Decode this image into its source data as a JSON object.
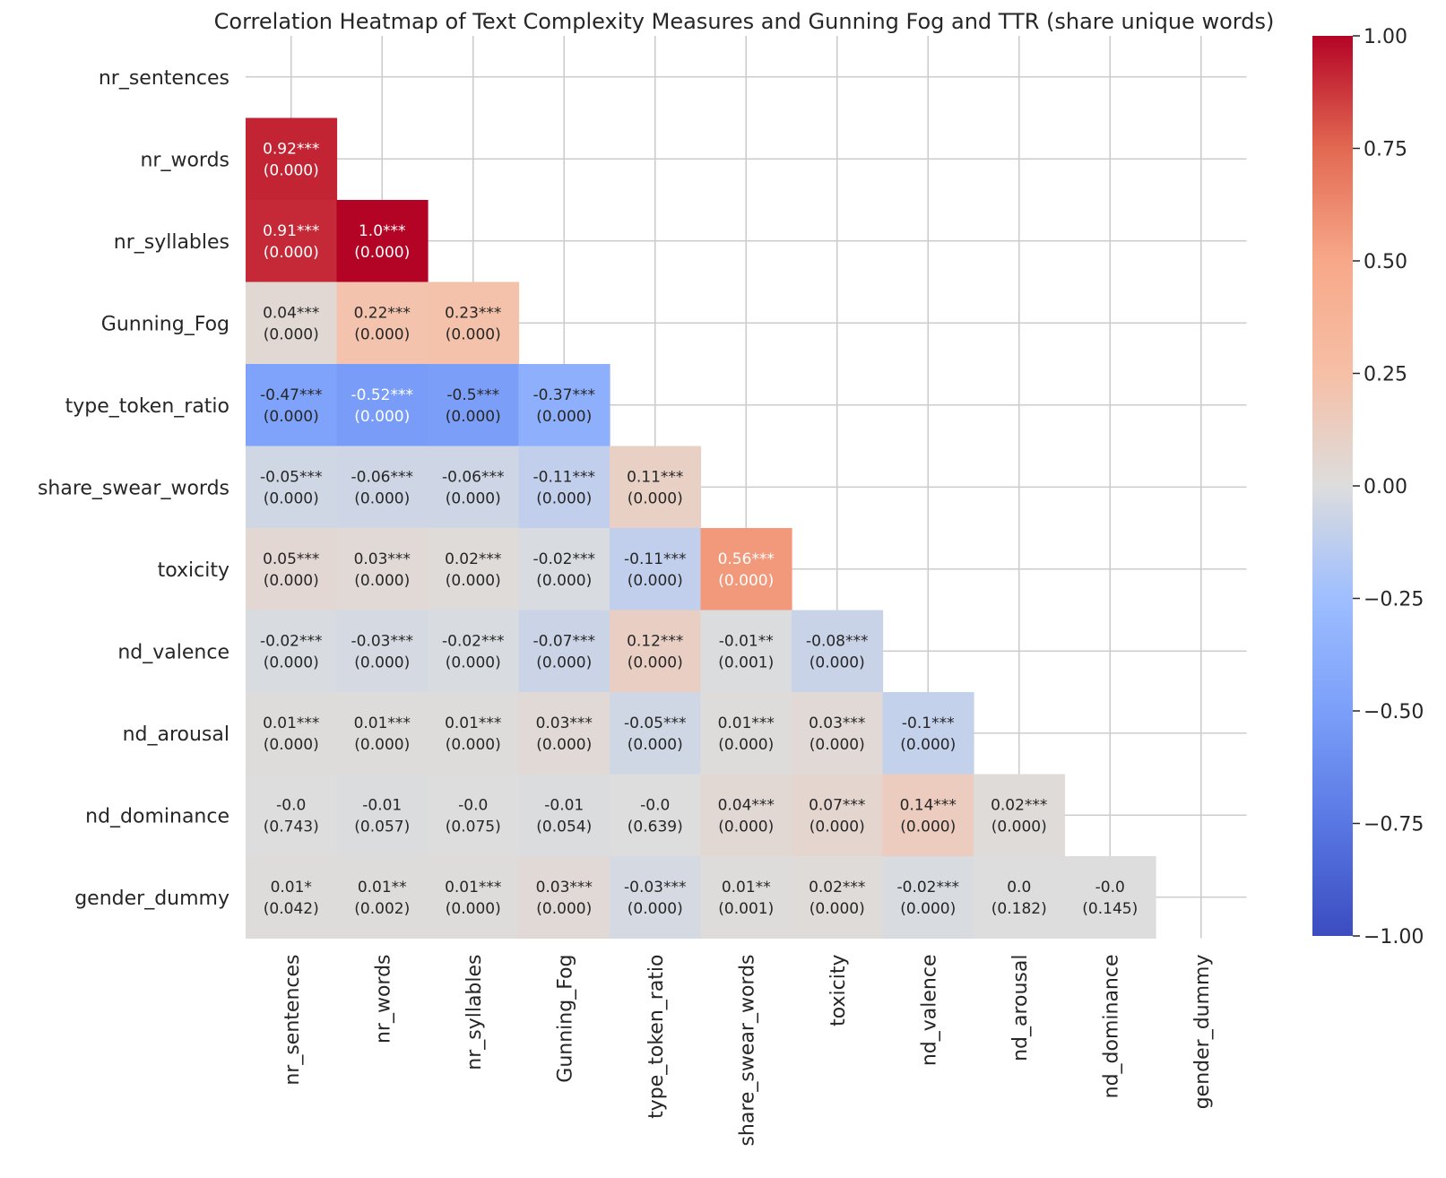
{
  "chart_data": {
    "type": "heatmap",
    "title": "Correlation Heatmap of Text Complexity Measures and Gunning Fog and TTR (share unique words)",
    "variables": [
      "nr_sentences",
      "nr_words",
      "nr_syllables",
      "Gunning_Fog",
      "type_token_ratio",
      "share_swear_words",
      "toxicity",
      "nd_valence",
      "nd_arousal",
      "nd_dominance",
      "gender_dummy"
    ],
    "mask": "upper triangle including diagonal",
    "grid": true,
    "colormap": "coolwarm",
    "vmin": -1.0,
    "vmax": 1.0,
    "colorbar_ticks": [
      "1.00",
      "0.75",
      "0.50",
      "0.25",
      "0.00",
      "−0.25",
      "−0.50",
      "−0.75",
      "−1.00"
    ],
    "colorbar_values": [
      1.0,
      0.75,
      0.5,
      0.25,
      0.0,
      -0.25,
      -0.5,
      -0.75,
      -1.0
    ],
    "cells": [
      {
        "row": 1,
        "col": 0,
        "value": 0.92,
        "label": "0.92***",
        "p": "(0.000)"
      },
      {
        "row": 2,
        "col": 0,
        "value": 0.91,
        "label": "0.91***",
        "p": "(0.000)"
      },
      {
        "row": 2,
        "col": 1,
        "value": 1.0,
        "label": "1.0***",
        "p": "(0.000)"
      },
      {
        "row": 3,
        "col": 0,
        "value": 0.04,
        "label": "0.04***",
        "p": "(0.000)"
      },
      {
        "row": 3,
        "col": 1,
        "value": 0.22,
        "label": "0.22***",
        "p": "(0.000)"
      },
      {
        "row": 3,
        "col": 2,
        "value": 0.23,
        "label": "0.23***",
        "p": "(0.000)"
      },
      {
        "row": 4,
        "col": 0,
        "value": -0.47,
        "label": "-0.47***",
        "p": "(0.000)"
      },
      {
        "row": 4,
        "col": 1,
        "value": -0.52,
        "label": "-0.52***",
        "p": "(0.000)"
      },
      {
        "row": 4,
        "col": 2,
        "value": -0.5,
        "label": "-0.5***",
        "p": "(0.000)"
      },
      {
        "row": 4,
        "col": 3,
        "value": -0.37,
        "label": "-0.37***",
        "p": "(0.000)"
      },
      {
        "row": 5,
        "col": 0,
        "value": -0.05,
        "label": "-0.05***",
        "p": "(0.000)"
      },
      {
        "row": 5,
        "col": 1,
        "value": -0.06,
        "label": "-0.06***",
        "p": "(0.000)"
      },
      {
        "row": 5,
        "col": 2,
        "value": -0.06,
        "label": "-0.06***",
        "p": "(0.000)"
      },
      {
        "row": 5,
        "col": 3,
        "value": -0.11,
        "label": "-0.11***",
        "p": "(0.000)"
      },
      {
        "row": 5,
        "col": 4,
        "value": 0.11,
        "label": "0.11***",
        "p": "(0.000)"
      },
      {
        "row": 6,
        "col": 0,
        "value": 0.05,
        "label": "0.05***",
        "p": "(0.000)"
      },
      {
        "row": 6,
        "col": 1,
        "value": 0.03,
        "label": "0.03***",
        "p": "(0.000)"
      },
      {
        "row": 6,
        "col": 2,
        "value": 0.02,
        "label": "0.02***",
        "p": "(0.000)"
      },
      {
        "row": 6,
        "col": 3,
        "value": -0.02,
        "label": "-0.02***",
        "p": "(0.000)"
      },
      {
        "row": 6,
        "col": 4,
        "value": -0.11,
        "label": "-0.11***",
        "p": "(0.000)"
      },
      {
        "row": 6,
        "col": 5,
        "value": 0.56,
        "label": "0.56***",
        "p": "(0.000)"
      },
      {
        "row": 7,
        "col": 0,
        "value": -0.02,
        "label": "-0.02***",
        "p": "(0.000)"
      },
      {
        "row": 7,
        "col": 1,
        "value": -0.03,
        "label": "-0.03***",
        "p": "(0.000)"
      },
      {
        "row": 7,
        "col": 2,
        "value": -0.02,
        "label": "-0.02***",
        "p": "(0.000)"
      },
      {
        "row": 7,
        "col": 3,
        "value": -0.07,
        "label": "-0.07***",
        "p": "(0.000)"
      },
      {
        "row": 7,
        "col": 4,
        "value": 0.12,
        "label": "0.12***",
        "p": "(0.000)"
      },
      {
        "row": 7,
        "col": 5,
        "value": -0.01,
        "label": "-0.01**",
        "p": "(0.001)"
      },
      {
        "row": 7,
        "col": 6,
        "value": -0.08,
        "label": "-0.08***",
        "p": "(0.000)"
      },
      {
        "row": 8,
        "col": 0,
        "value": 0.01,
        "label": "0.01***",
        "p": "(0.000)"
      },
      {
        "row": 8,
        "col": 1,
        "value": 0.01,
        "label": "0.01***",
        "p": "(0.000)"
      },
      {
        "row": 8,
        "col": 2,
        "value": 0.01,
        "label": "0.01***",
        "p": "(0.000)"
      },
      {
        "row": 8,
        "col": 3,
        "value": 0.03,
        "label": "0.03***",
        "p": "(0.000)"
      },
      {
        "row": 8,
        "col": 4,
        "value": -0.05,
        "label": "-0.05***",
        "p": "(0.000)"
      },
      {
        "row": 8,
        "col": 5,
        "value": 0.01,
        "label": "0.01***",
        "p": "(0.000)"
      },
      {
        "row": 8,
        "col": 6,
        "value": 0.03,
        "label": "0.03***",
        "p": "(0.000)"
      },
      {
        "row": 8,
        "col": 7,
        "value": -0.1,
        "label": "-0.1***",
        "p": "(0.000)"
      },
      {
        "row": 9,
        "col": 0,
        "value": -0.0,
        "label": "-0.0",
        "p": "(0.743)"
      },
      {
        "row": 9,
        "col": 1,
        "value": -0.01,
        "label": "-0.01",
        "p": "(0.057)"
      },
      {
        "row": 9,
        "col": 2,
        "value": -0.0,
        "label": "-0.0",
        "p": "(0.075)"
      },
      {
        "row": 9,
        "col": 3,
        "value": -0.01,
        "label": "-0.01",
        "p": "(0.054)"
      },
      {
        "row": 9,
        "col": 4,
        "value": -0.0,
        "label": "-0.0",
        "p": "(0.639)"
      },
      {
        "row": 9,
        "col": 5,
        "value": 0.04,
        "label": "0.04***",
        "p": "(0.000)"
      },
      {
        "row": 9,
        "col": 6,
        "value": 0.07,
        "label": "0.07***",
        "p": "(0.000)"
      },
      {
        "row": 9,
        "col": 7,
        "value": 0.14,
        "label": "0.14***",
        "p": "(0.000)"
      },
      {
        "row": 9,
        "col": 8,
        "value": 0.02,
        "label": "0.02***",
        "p": "(0.000)"
      },
      {
        "row": 10,
        "col": 0,
        "value": 0.01,
        "label": "0.01*",
        "p": "(0.042)"
      },
      {
        "row": 10,
        "col": 1,
        "value": 0.01,
        "label": "0.01**",
        "p": "(0.002)"
      },
      {
        "row": 10,
        "col": 2,
        "value": 0.01,
        "label": "0.01***",
        "p": "(0.000)"
      },
      {
        "row": 10,
        "col": 3,
        "value": 0.03,
        "label": "0.03***",
        "p": "(0.000)"
      },
      {
        "row": 10,
        "col": 4,
        "value": -0.03,
        "label": "-0.03***",
        "p": "(0.000)"
      },
      {
        "row": 10,
        "col": 5,
        "value": 0.01,
        "label": "0.01**",
        "p": "(0.001)"
      },
      {
        "row": 10,
        "col": 6,
        "value": 0.02,
        "label": "0.02***",
        "p": "(0.000)"
      },
      {
        "row": 10,
        "col": 7,
        "value": -0.02,
        "label": "-0.02***",
        "p": "(0.000)"
      },
      {
        "row": 10,
        "col": 8,
        "value": 0.0,
        "label": "0.0",
        "p": "(0.182)"
      },
      {
        "row": 10,
        "col": 9,
        "value": -0.0,
        "label": "-0.0",
        "p": "(0.145)"
      }
    ]
  }
}
